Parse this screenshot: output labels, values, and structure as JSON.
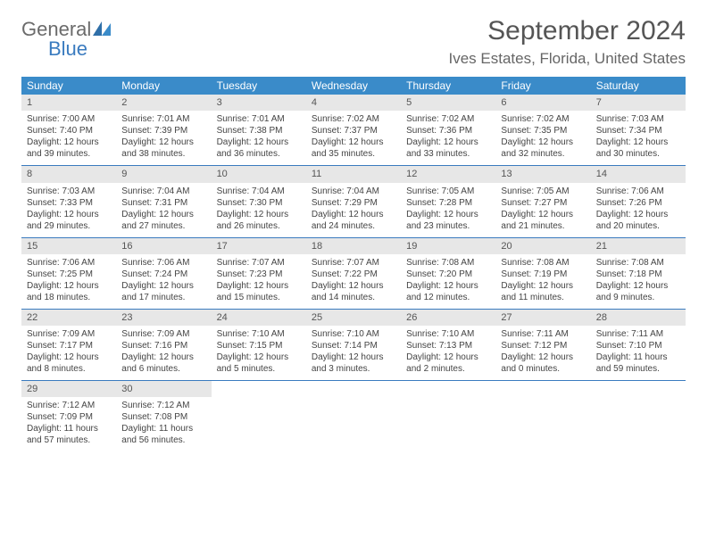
{
  "brand": {
    "name1": "General",
    "name2": "Blue"
  },
  "title": "September 2024",
  "location": "Ives Estates, Florida, United States",
  "colors": {
    "header_bg": "#3a8bc9",
    "accent": "#3a7bbf",
    "daynum_bg": "#e7e7e7",
    "text": "#444444"
  },
  "dow": [
    "Sunday",
    "Monday",
    "Tuesday",
    "Wednesday",
    "Thursday",
    "Friday",
    "Saturday"
  ],
  "days": [
    {
      "n": "1",
      "sunrise": "7:00 AM",
      "sunset": "7:40 PM",
      "dl1": "12 hours",
      "dl2": "and 39 minutes."
    },
    {
      "n": "2",
      "sunrise": "7:01 AM",
      "sunset": "7:39 PM",
      "dl1": "12 hours",
      "dl2": "and 38 minutes."
    },
    {
      "n": "3",
      "sunrise": "7:01 AM",
      "sunset": "7:38 PM",
      "dl1": "12 hours",
      "dl2": "and 36 minutes."
    },
    {
      "n": "4",
      "sunrise": "7:02 AM",
      "sunset": "7:37 PM",
      "dl1": "12 hours",
      "dl2": "and 35 minutes."
    },
    {
      "n": "5",
      "sunrise": "7:02 AM",
      "sunset": "7:36 PM",
      "dl1": "12 hours",
      "dl2": "and 33 minutes."
    },
    {
      "n": "6",
      "sunrise": "7:02 AM",
      "sunset": "7:35 PM",
      "dl1": "12 hours",
      "dl2": "and 32 minutes."
    },
    {
      "n": "7",
      "sunrise": "7:03 AM",
      "sunset": "7:34 PM",
      "dl1": "12 hours",
      "dl2": "and 30 minutes."
    },
    {
      "n": "8",
      "sunrise": "7:03 AM",
      "sunset": "7:33 PM",
      "dl1": "12 hours",
      "dl2": "and 29 minutes."
    },
    {
      "n": "9",
      "sunrise": "7:04 AM",
      "sunset": "7:31 PM",
      "dl1": "12 hours",
      "dl2": "and 27 minutes."
    },
    {
      "n": "10",
      "sunrise": "7:04 AM",
      "sunset": "7:30 PM",
      "dl1": "12 hours",
      "dl2": "and 26 minutes."
    },
    {
      "n": "11",
      "sunrise": "7:04 AM",
      "sunset": "7:29 PM",
      "dl1": "12 hours",
      "dl2": "and 24 minutes."
    },
    {
      "n": "12",
      "sunrise": "7:05 AM",
      "sunset": "7:28 PM",
      "dl1": "12 hours",
      "dl2": "and 23 minutes."
    },
    {
      "n": "13",
      "sunrise": "7:05 AM",
      "sunset": "7:27 PM",
      "dl1": "12 hours",
      "dl2": "and 21 minutes."
    },
    {
      "n": "14",
      "sunrise": "7:06 AM",
      "sunset": "7:26 PM",
      "dl1": "12 hours",
      "dl2": "and 20 minutes."
    },
    {
      "n": "15",
      "sunrise": "7:06 AM",
      "sunset": "7:25 PM",
      "dl1": "12 hours",
      "dl2": "and 18 minutes."
    },
    {
      "n": "16",
      "sunrise": "7:06 AM",
      "sunset": "7:24 PM",
      "dl1": "12 hours",
      "dl2": "and 17 minutes."
    },
    {
      "n": "17",
      "sunrise": "7:07 AM",
      "sunset": "7:23 PM",
      "dl1": "12 hours",
      "dl2": "and 15 minutes."
    },
    {
      "n": "18",
      "sunrise": "7:07 AM",
      "sunset": "7:22 PM",
      "dl1": "12 hours",
      "dl2": "and 14 minutes."
    },
    {
      "n": "19",
      "sunrise": "7:08 AM",
      "sunset": "7:20 PM",
      "dl1": "12 hours",
      "dl2": "and 12 minutes."
    },
    {
      "n": "20",
      "sunrise": "7:08 AM",
      "sunset": "7:19 PM",
      "dl1": "12 hours",
      "dl2": "and 11 minutes."
    },
    {
      "n": "21",
      "sunrise": "7:08 AM",
      "sunset": "7:18 PM",
      "dl1": "12 hours",
      "dl2": "and 9 minutes."
    },
    {
      "n": "22",
      "sunrise": "7:09 AM",
      "sunset": "7:17 PM",
      "dl1": "12 hours",
      "dl2": "and 8 minutes."
    },
    {
      "n": "23",
      "sunrise": "7:09 AM",
      "sunset": "7:16 PM",
      "dl1": "12 hours",
      "dl2": "and 6 minutes."
    },
    {
      "n": "24",
      "sunrise": "7:10 AM",
      "sunset": "7:15 PM",
      "dl1": "12 hours",
      "dl2": "and 5 minutes."
    },
    {
      "n": "25",
      "sunrise": "7:10 AM",
      "sunset": "7:14 PM",
      "dl1": "12 hours",
      "dl2": "and 3 minutes."
    },
    {
      "n": "26",
      "sunrise": "7:10 AM",
      "sunset": "7:13 PM",
      "dl1": "12 hours",
      "dl2": "and 2 minutes."
    },
    {
      "n": "27",
      "sunrise": "7:11 AM",
      "sunset": "7:12 PM",
      "dl1": "12 hours",
      "dl2": "and 0 minutes."
    },
    {
      "n": "28",
      "sunrise": "7:11 AM",
      "sunset": "7:10 PM",
      "dl1": "11 hours",
      "dl2": "and 59 minutes."
    },
    {
      "n": "29",
      "sunrise": "7:12 AM",
      "sunset": "7:09 PM",
      "dl1": "11 hours",
      "dl2": "and 57 minutes."
    },
    {
      "n": "30",
      "sunrise": "7:12 AM",
      "sunset": "7:08 PM",
      "dl1": "11 hours",
      "dl2": "and 56 minutes."
    }
  ],
  "labels": {
    "sunrise": "Sunrise: ",
    "sunset": "Sunset: ",
    "daylight": "Daylight: "
  },
  "trailing_empty": 5
}
